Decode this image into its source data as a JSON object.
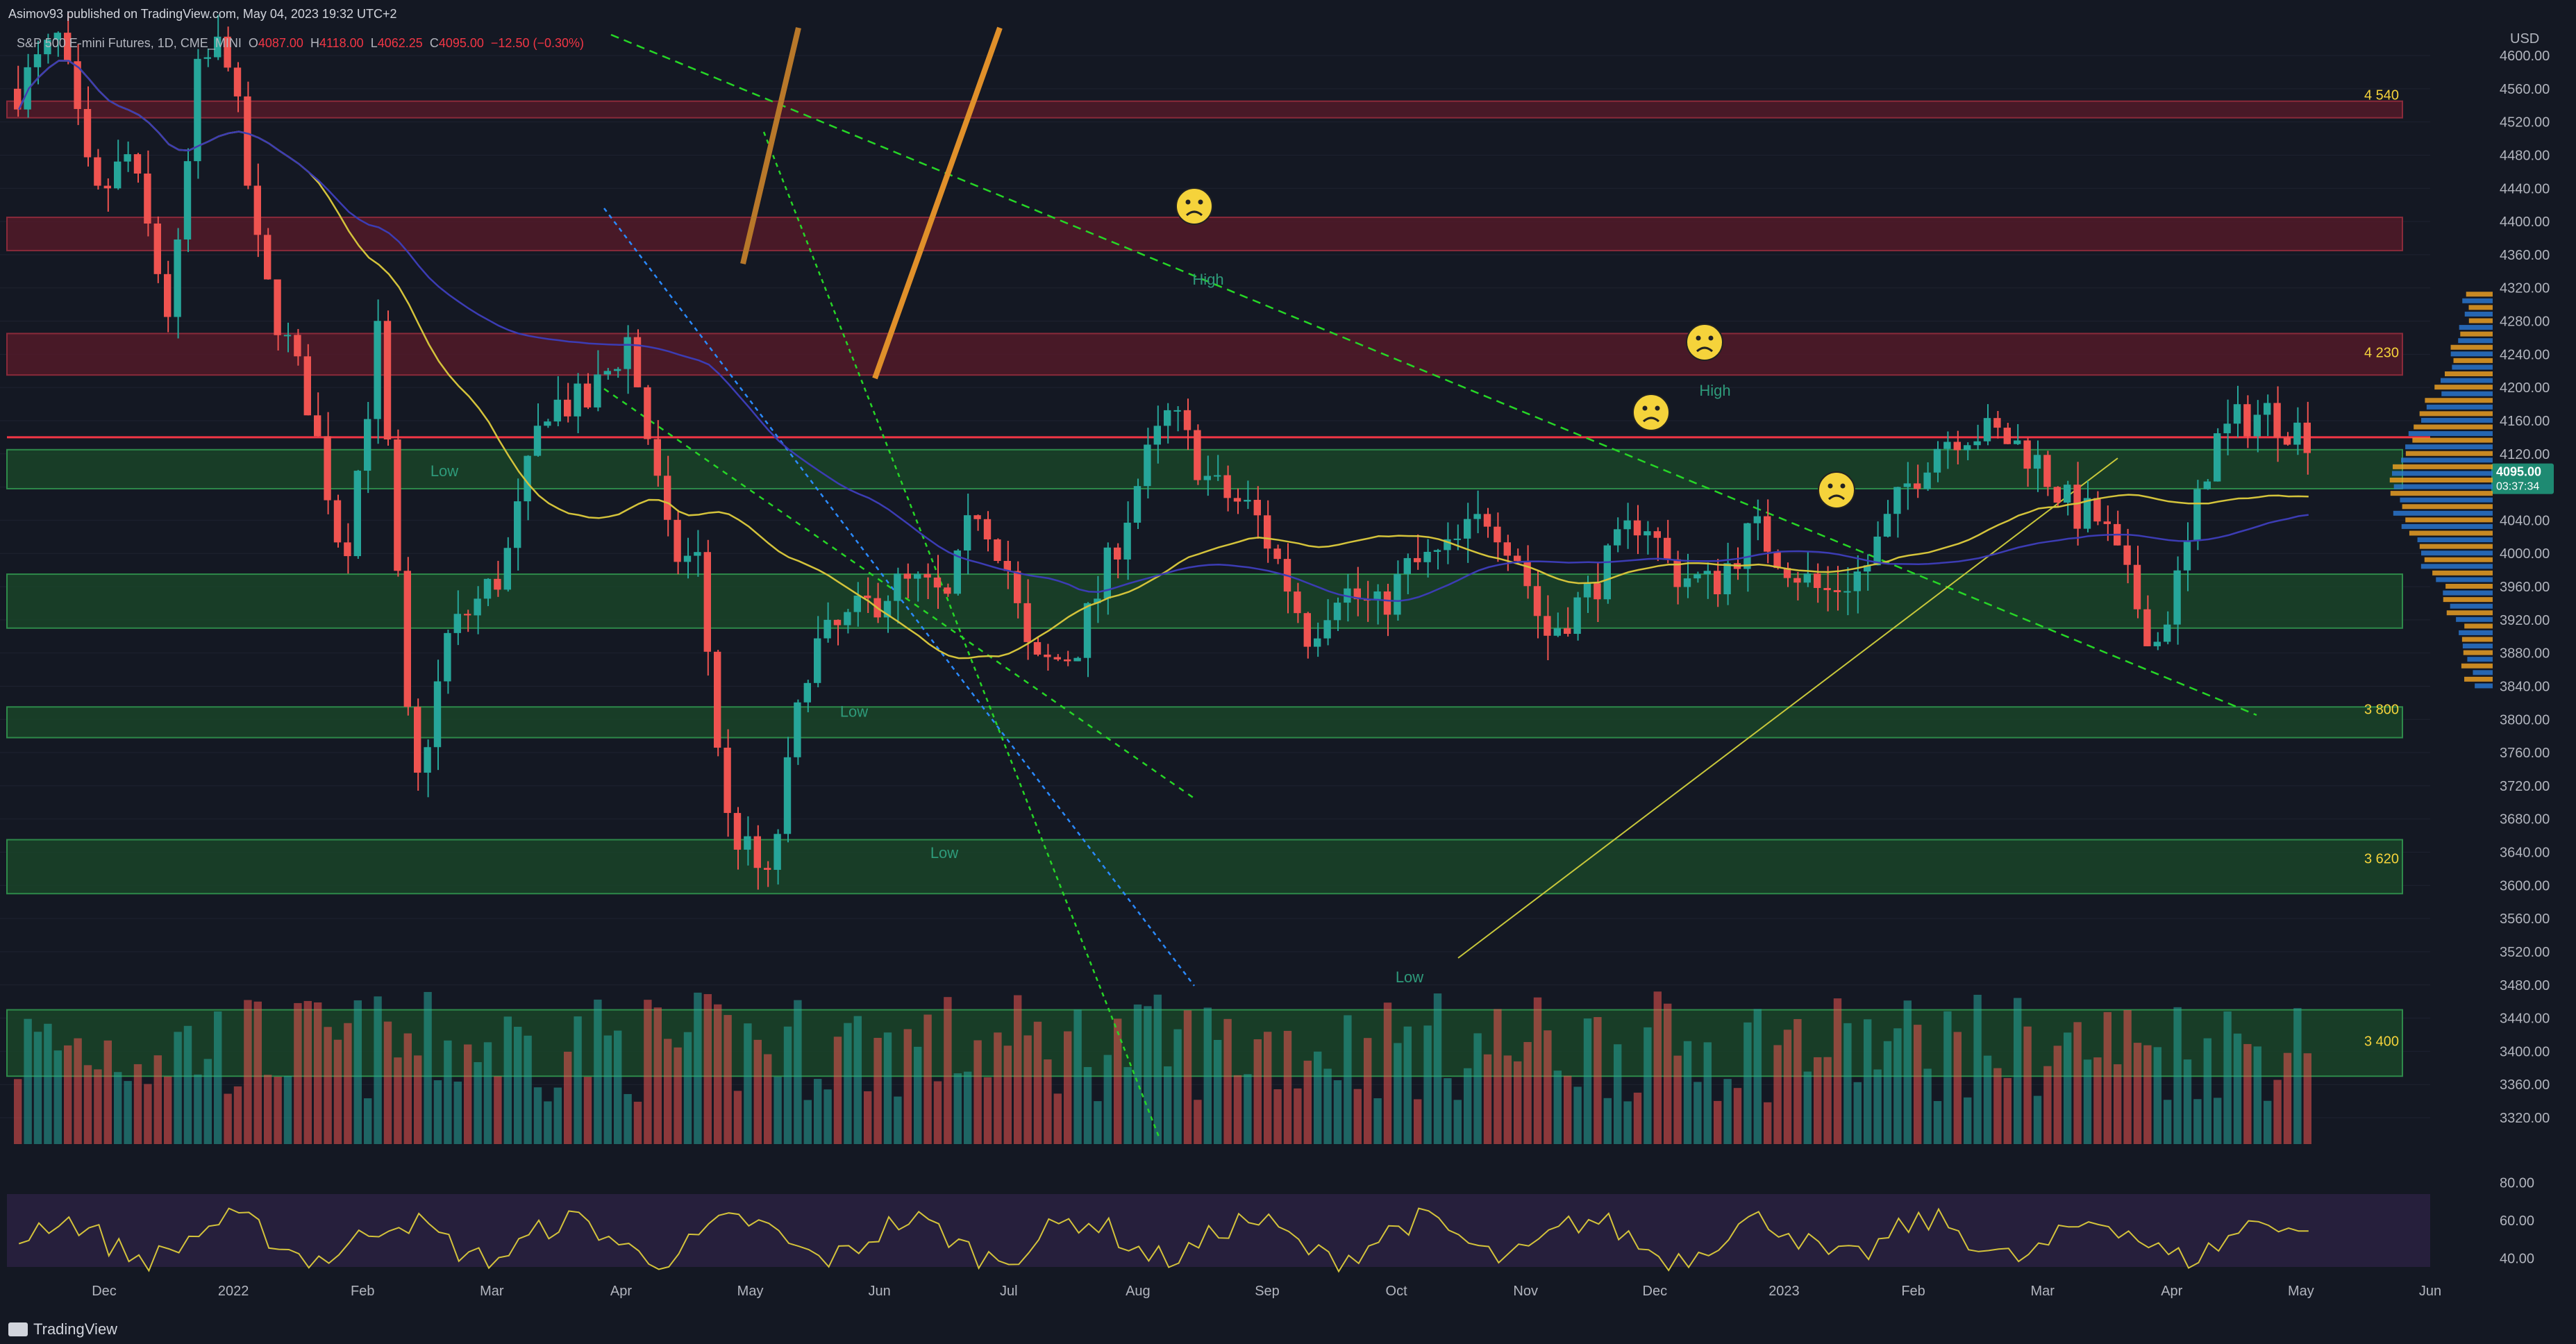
{
  "header": {
    "published_line": "Asimov93 published on TradingView.com, May 04, 2023 19:32 UTC+2",
    "symbol": "S&P 500 E-mini Futures",
    "interval": "1D",
    "exchange": "CME_MINI",
    "ohlc": {
      "o_label": "O",
      "o": "4087.00",
      "h_label": "H",
      "h": "4118.00",
      "l_label": "L",
      "l": "4062.25",
      "c_label": "C",
      "c": "4095.00",
      "change": "−12.50 (−0.30%)"
    }
  },
  "footer": {
    "brand": "TradingView"
  },
  "colors": {
    "background": "#141823",
    "up": "#26a69a",
    "down": "#ef5350",
    "resistance_zone": "#5a1a2a",
    "support_zone": "#1a4a2a",
    "trendline": "#26d626",
    "ma_yellow": "#d4c33b",
    "ma_blue": "#3c3cb4",
    "price_line": "#f23645"
  },
  "chart_data": {
    "type": "candlestick",
    "currency": "USD",
    "y_axis": {
      "range": [
        3280,
        4640
      ],
      "ticks": [
        "4600.00",
        "4560.00",
        "4520.00",
        "4480.00",
        "4440.00",
        "4400.00",
        "4360.00",
        "4320.00",
        "4280.00",
        "4240.00",
        "4200.00",
        "4160.00",
        "4120.00",
        "4080.00",
        "4040.00",
        "4000.00",
        "3960.00",
        "3920.00",
        "3880.00",
        "3840.00",
        "3800.00",
        "3760.00",
        "3720.00",
        "3680.00",
        "3640.00",
        "3600.00",
        "3560.00",
        "3520.00",
        "3480.00",
        "3440.00",
        "3400.00",
        "3360.00",
        "3320.00"
      ],
      "last_price": "4095.00",
      "countdown": "03:37:34"
    },
    "x_axis": {
      "labels": [
        "Dec",
        "2022",
        "Feb",
        "Mar",
        "Apr",
        "May",
        "Jun",
        "Jul",
        "Aug",
        "Sep",
        "Oct",
        "Nov",
        "Dec",
        "2023",
        "Feb",
        "Mar",
        "Apr",
        "May",
        "Jun"
      ]
    },
    "zone_labels": [
      {
        "text": "4 540",
        "price": 4540
      },
      {
        "text": "4 230",
        "price": 4230
      },
      {
        "text": "3 800",
        "price": 3800
      },
      {
        "text": "3 620",
        "price": 3620
      },
      {
        "text": "3 400",
        "price": 3400
      }
    ],
    "zones": [
      {
        "kind": "resistance",
        "from": 4525,
        "to": 4545
      },
      {
        "kind": "resistance",
        "from": 4365,
        "to": 4405
      },
      {
        "kind": "resistance",
        "from": 4215,
        "to": 4265
      },
      {
        "kind": "support",
        "from": 4078,
        "to": 4125
      },
      {
        "kind": "support",
        "from": 3910,
        "to": 3975
      },
      {
        "kind": "support",
        "from": 3778,
        "to": 3815
      },
      {
        "kind": "support",
        "from": 3590,
        "to": 3655
      },
      {
        "kind": "support",
        "from": 3370,
        "to": 3450
      }
    ],
    "price_line": 4140,
    "annotations": [
      {
        "text": "Low",
        "price": 4093
      },
      {
        "text": "Low",
        "price": 3803
      },
      {
        "text": "Low",
        "price": 3633
      },
      {
        "text": "Low",
        "price": 3483
      },
      {
        "text": "High",
        "price": 4324
      },
      {
        "text": "High",
        "price": 4190
      }
    ],
    "rsi": {
      "ticks": [
        "80.00",
        "60.00",
        "40.00"
      ],
      "range": [
        30,
        85
      ]
    }
  }
}
